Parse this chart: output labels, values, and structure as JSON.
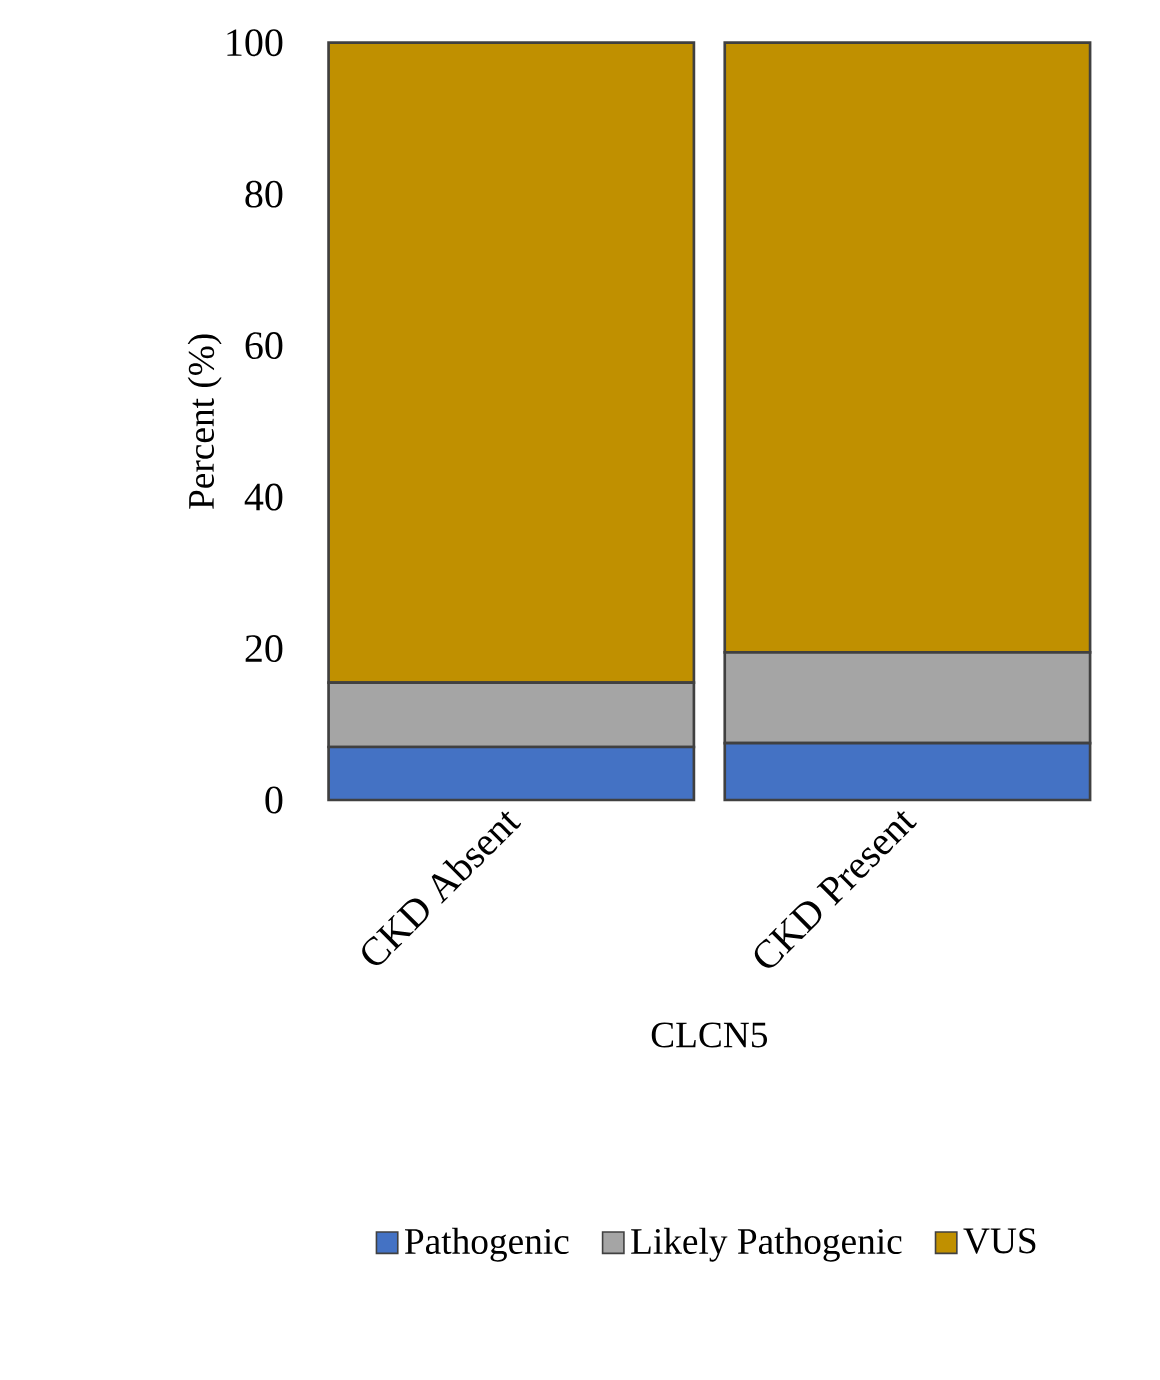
{
  "chart_data": {
    "type": "bar",
    "stacked": true,
    "xlabel": "CLCN5",
    "ylabel": "Percent (%)",
    "categories": [
      "CKD Absent",
      "CKD Present"
    ],
    "series": [
      {
        "name": "Pathogenic",
        "color": "#4472c4",
        "values": [
          7,
          7.5
        ]
      },
      {
        "name": "Likely Pathogenic",
        "color": "#a5a5a5",
        "values": [
          8.5,
          12
        ]
      },
      {
        "name": "VUS",
        "color": "#c09000",
        "values": [
          84.5,
          80.5
        ]
      }
    ],
    "ylim": [
      0,
      100
    ],
    "yticks": [
      0,
      20,
      40,
      60,
      80,
      100
    ],
    "grid": false,
    "legend": "bottom"
  }
}
